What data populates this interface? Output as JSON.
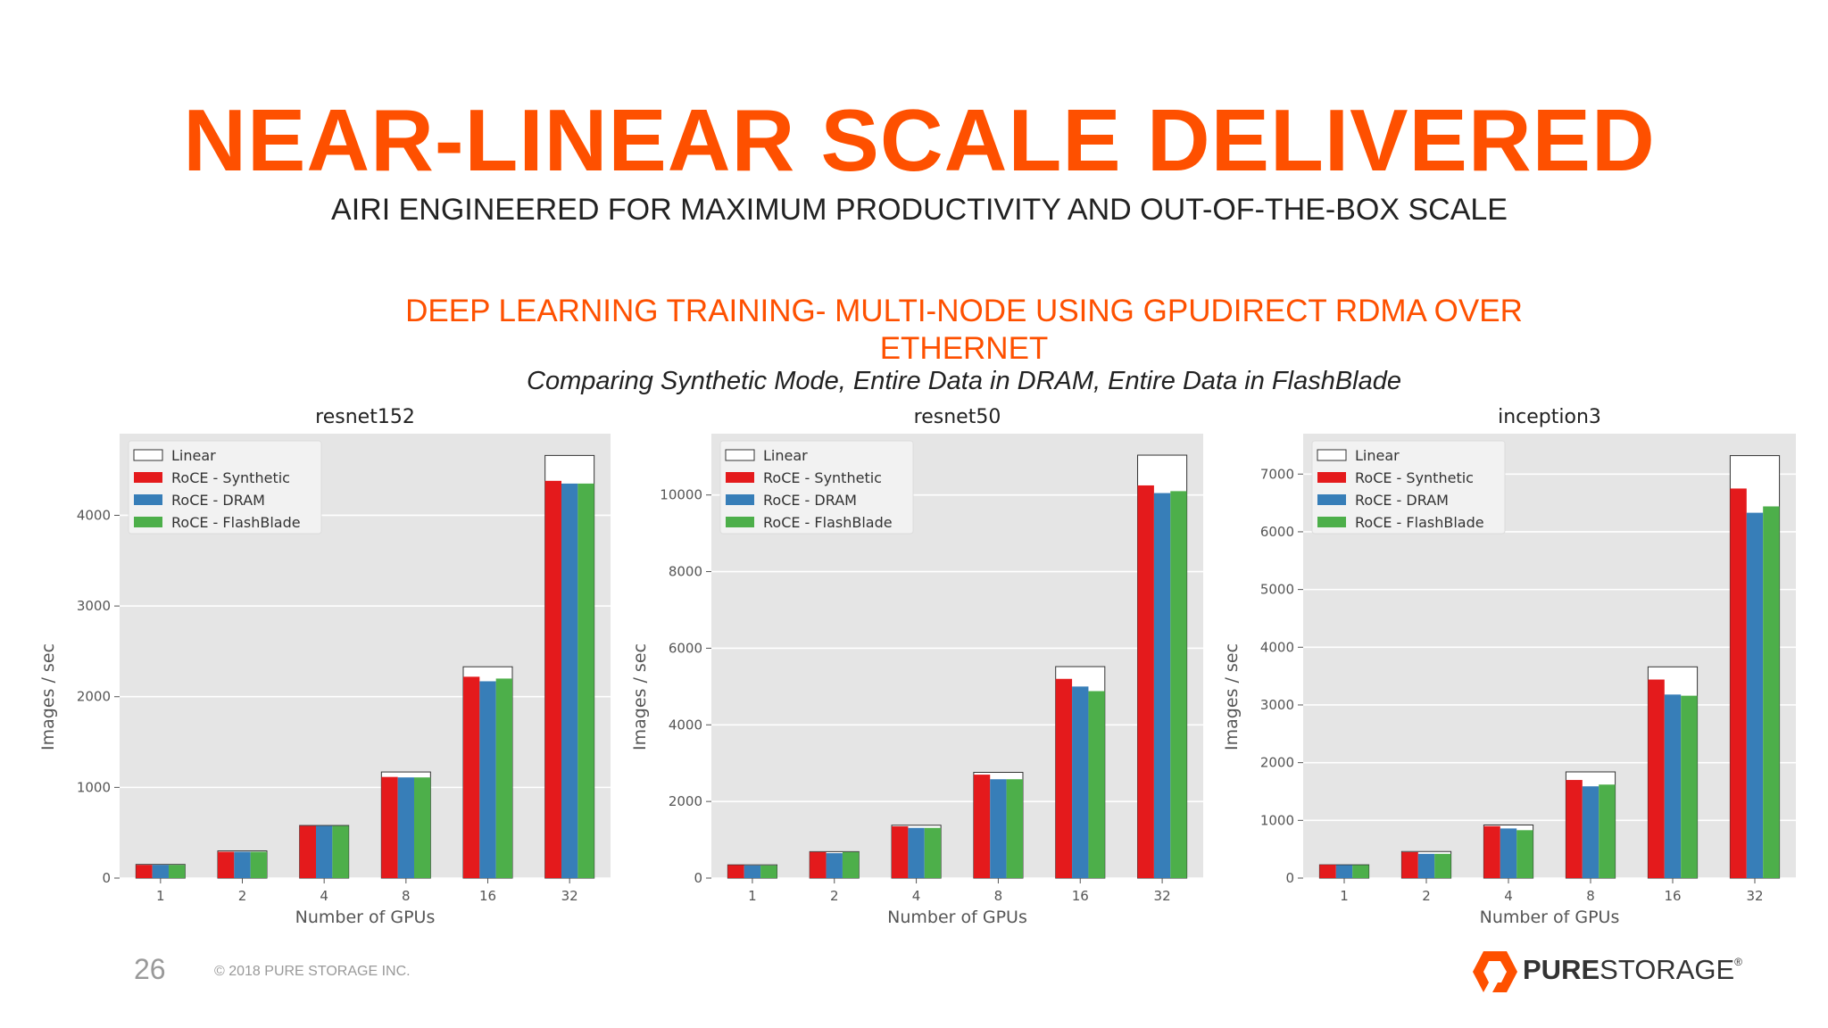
{
  "slide": {
    "title": "NEAR-LINEAR SCALE DELIVERED",
    "subtitle": "AIRI ENGINEERED FOR MAXIMUM PRODUCTIVITY AND OUT-OF-THE-BOX SCALE",
    "section_line1": "DEEP LEARNING TRAINING- MULTI-NODE USING GPUDIRECT RDMA OVER",
    "section_line2": "ETHERNET",
    "comparison": "Comparing Synthetic Mode, Entire Data in DRAM, Entire Data in FlashBlade",
    "page_number": "26",
    "copyright": "© 2018 PURE STORAGE INC.",
    "logo_bold": "PURE",
    "logo_light": "STORAGE",
    "logo_mark": "®"
  },
  "colors": {
    "accent": "#fe5000",
    "synthetic": "#e41a1c",
    "dram": "#377eb8",
    "flashblade": "#4daf4a",
    "plot_bg": "#e5e5e5"
  },
  "chart_data": [
    {
      "type": "bar",
      "title": "resnet152",
      "xlabel": "Number of GPUs",
      "ylabel": "Images / sec",
      "categories": [
        "1",
        "2",
        "4",
        "8",
        "16",
        "32"
      ],
      "ylim": [
        0,
        4900
      ],
      "yticks": [
        0,
        1000,
        2000,
        3000,
        4000
      ],
      "legend": "top-left",
      "grid": true,
      "series": [
        {
          "name": "Linear",
          "values": [
            150,
            300,
            580,
            1170,
            2330,
            4660
          ]
        },
        {
          "name": "RoCE - Synthetic",
          "values": [
            145,
            290,
            575,
            1115,
            2220,
            4380
          ]
        },
        {
          "name": "RoCE - DRAM",
          "values": [
            145,
            290,
            575,
            1110,
            2170,
            4350
          ]
        },
        {
          "name": "RoCE - FlashBlade",
          "values": [
            145,
            290,
            575,
            1110,
            2200,
            4350
          ]
        }
      ]
    },
    {
      "type": "bar",
      "title": "resnet50",
      "xlabel": "Number of GPUs",
      "ylabel": "Images / sec",
      "categories": [
        "1",
        "2",
        "4",
        "8",
        "16",
        "32"
      ],
      "ylim": [
        0,
        11600
      ],
      "yticks": [
        0,
        2000,
        4000,
        6000,
        8000,
        10000
      ],
      "legend": "top-left",
      "grid": true,
      "series": [
        {
          "name": "Linear",
          "values": [
            345,
            690,
            1380,
            2760,
            5520,
            11040
          ]
        },
        {
          "name": "RoCE - Synthetic",
          "values": [
            340,
            680,
            1350,
            2700,
            5200,
            10250
          ]
        },
        {
          "name": "RoCE - DRAM",
          "values": [
            330,
            650,
            1310,
            2580,
            5000,
            10050
          ]
        },
        {
          "name": "RoCE - FlashBlade",
          "values": [
            330,
            680,
            1310,
            2580,
            4880,
            10100
          ]
        }
      ]
    },
    {
      "type": "bar",
      "title": "inception3",
      "xlabel": "Number of GPUs",
      "ylabel": "Images / sec",
      "categories": [
        "1",
        "2",
        "4",
        "8",
        "16",
        "32"
      ],
      "ylim": [
        0,
        7700
      ],
      "yticks": [
        0,
        1000,
        2000,
        3000,
        4000,
        5000,
        6000,
        7000
      ],
      "legend": "top-left",
      "grid": true,
      "series": [
        {
          "name": "Linear",
          "values": [
            230,
            460,
            920,
            1840,
            3660,
            7320
          ]
        },
        {
          "name": "RoCE - Synthetic",
          "values": [
            230,
            450,
            900,
            1700,
            3440,
            6750
          ]
        },
        {
          "name": "RoCE - DRAM",
          "values": [
            225,
            420,
            860,
            1590,
            3180,
            6330
          ]
        },
        {
          "name": "RoCE - FlashBlade",
          "values": [
            225,
            420,
            830,
            1620,
            3160,
            6440
          ]
        }
      ]
    }
  ]
}
